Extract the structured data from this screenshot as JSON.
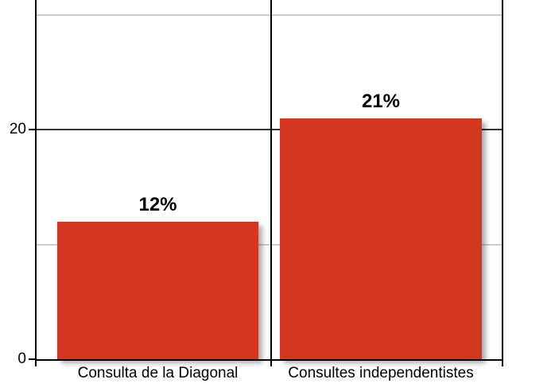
{
  "chart_data": {
    "type": "bar",
    "categories": [
      "Consulta de la Diagonal",
      "Consultes independentistes"
    ],
    "values": [
      12,
      21
    ],
    "value_labels": [
      "12%",
      "21%"
    ],
    "title": "",
    "xlabel": "",
    "ylabel": "",
    "ylim": [
      0,
      31
    ],
    "yticks_labeled": [
      {
        "value": 0,
        "label": "0"
      },
      {
        "value": 20,
        "label": "20"
      }
    ],
    "yticks_unlabeled": [
      10,
      30
    ],
    "grid": "horizontal gridlines plus vertical column separator lines; top of plot cropped out of frame",
    "legend": "none",
    "bar_color": "#d33721"
  },
  "colors": {
    "bar": "#d33721",
    "axis": "#000000",
    "grid_major": "#333333",
    "grid_minor": "#cccccc",
    "text": "#000000",
    "background": "#ffffff"
  }
}
